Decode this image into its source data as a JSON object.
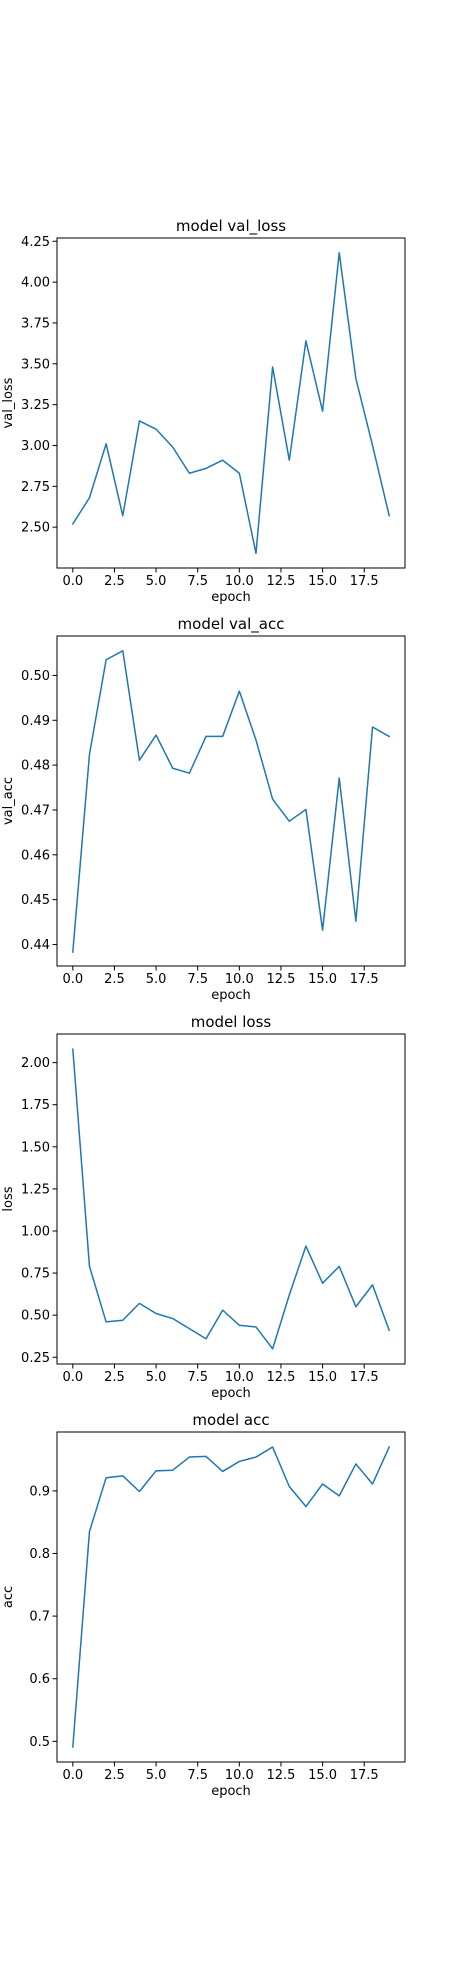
{
  "chart_data": [
    {
      "type": "line",
      "title": "model val_loss",
      "xlabel": "epoch",
      "ylabel": "val_loss",
      "x": [
        0,
        1,
        2,
        3,
        4,
        5,
        6,
        7,
        8,
        9,
        10,
        11,
        12,
        13,
        14,
        15,
        16,
        17,
        18,
        19
      ],
      "series": [
        {
          "values": [
            2.52,
            2.68,
            3.01,
            2.57,
            3.15,
            3.1,
            2.99,
            2.83,
            2.86,
            2.91,
            2.83,
            2.34,
            3.48,
            2.91,
            3.64,
            3.21,
            4.18,
            3.41,
            3.0,
            2.57
          ]
        }
      ],
      "xlim": [
        -0.95,
        19.95
      ],
      "ylim": [
        2.25,
        4.27
      ],
      "xticks": [
        0,
        2.5,
        5,
        7.5,
        10,
        12.5,
        15,
        17.5
      ],
      "xtick_labels": [
        "0.0",
        "2.5",
        "5.0",
        "7.5",
        "10.0",
        "12.5",
        "15.0",
        "17.5"
      ],
      "yticks": [
        2.5,
        2.75,
        3.0,
        3.25,
        3.5,
        3.75,
        4.0,
        4.25
      ],
      "ytick_labels": [
        "2.50",
        "2.75",
        "3.00",
        "3.25",
        "3.50",
        "3.75",
        "4.00",
        "4.25"
      ],
      "grid": false,
      "color": "#1f77b4"
    },
    {
      "type": "line",
      "title": "model val_acc",
      "xlabel": "epoch",
      "ylabel": "val_acc",
      "x": [
        0,
        1,
        2,
        3,
        4,
        5,
        6,
        7,
        8,
        9,
        10,
        11,
        12,
        13,
        14,
        15,
        16,
        17,
        18,
        19
      ],
      "series": [
        {
          "values": [
            0.4383,
            0.4824,
            0.5035,
            0.5055,
            0.4811,
            0.4867,
            0.4793,
            0.4782,
            0.4864,
            0.4864,
            0.4965,
            0.4856,
            0.4724,
            0.4675,
            0.4701,
            0.4432,
            0.4771,
            0.4452,
            0.4885,
            0.4864
          ]
        }
      ],
      "xlim": [
        -0.95,
        19.95
      ],
      "ylim": [
        0.4352,
        0.5088
      ],
      "xticks": [
        0,
        2.5,
        5,
        7.5,
        10,
        12.5,
        15,
        17.5
      ],
      "xtick_labels": [
        "0.0",
        "2.5",
        "5.0",
        "7.5",
        "10.0",
        "12.5",
        "15.0",
        "17.5"
      ],
      "yticks": [
        0.44,
        0.45,
        0.46,
        0.47,
        0.48,
        0.49,
        0.5
      ],
      "ytick_labels": [
        "0.44",
        "0.45",
        "0.46",
        "0.47",
        "0.48",
        "0.49",
        "0.50"
      ],
      "grid": false,
      "color": "#1f77b4"
    },
    {
      "type": "line",
      "title": "model loss",
      "xlabel": "epoch",
      "ylabel": "loss",
      "x": [
        0,
        1,
        2,
        3,
        4,
        5,
        6,
        7,
        8,
        9,
        10,
        11,
        12,
        13,
        14,
        15,
        16,
        17,
        18,
        19
      ],
      "series": [
        {
          "values": [
            2.08,
            0.79,
            0.46,
            0.47,
            0.57,
            0.51,
            0.48,
            0.42,
            0.36,
            0.53,
            0.44,
            0.43,
            0.3,
            0.62,
            0.91,
            0.69,
            0.79,
            0.55,
            0.68,
            0.41
          ]
        }
      ],
      "xlim": [
        -0.95,
        19.95
      ],
      "ylim": [
        0.21,
        2.17
      ],
      "xticks": [
        0,
        2.5,
        5,
        7.5,
        10,
        12.5,
        15,
        17.5
      ],
      "xtick_labels": [
        "0.0",
        "2.5",
        "5.0",
        "7.5",
        "10.0",
        "12.5",
        "15.0",
        "17.5"
      ],
      "yticks": [
        0.25,
        0.5,
        0.75,
        1.0,
        1.25,
        1.5,
        1.75,
        2.0
      ],
      "ytick_labels": [
        "0.25",
        "0.50",
        "0.75",
        "1.00",
        "1.25",
        "1.50",
        "1.75",
        "2.00"
      ],
      "grid": false,
      "color": "#1f77b4"
    },
    {
      "type": "line",
      "title": "model acc",
      "xlabel": "epoch",
      "ylabel": "acc",
      "x": [
        0,
        1,
        2,
        3,
        4,
        5,
        6,
        7,
        8,
        9,
        10,
        11,
        12,
        13,
        14,
        15,
        16,
        17,
        18,
        19
      ],
      "series": [
        {
          "values": [
            0.491,
            0.835,
            0.921,
            0.924,
            0.899,
            0.932,
            0.933,
            0.954,
            0.955,
            0.931,
            0.947,
            0.954,
            0.97,
            0.907,
            0.875,
            0.911,
            0.892,
            0.943,
            0.911,
            0.97
          ]
        }
      ],
      "xlim": [
        -0.95,
        19.95
      ],
      "ylim": [
        0.467,
        0.994
      ],
      "xticks": [
        0,
        2.5,
        5,
        7.5,
        10,
        12.5,
        15,
        17.5
      ],
      "xtick_labels": [
        "0.0",
        "2.5",
        "5.0",
        "7.5",
        "10.0",
        "12.5",
        "15.0",
        "17.5"
      ],
      "yticks": [
        0.5,
        0.6,
        0.7,
        0.8,
        0.9
      ],
      "ytick_labels": [
        "0.5",
        "0.6",
        "0.7",
        "0.8",
        "0.9"
      ],
      "grid": false,
      "color": "#1f77b4"
    }
  ]
}
